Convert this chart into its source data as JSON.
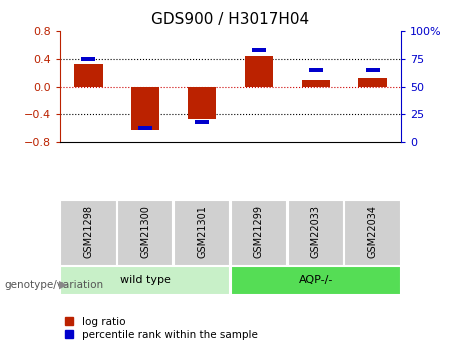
{
  "title": "GDS900 / H3017H04",
  "samples": [
    "GSM21298",
    "GSM21300",
    "GSM21301",
    "GSM21299",
    "GSM22033",
    "GSM22034"
  ],
  "log_ratios": [
    0.32,
    -0.62,
    -0.46,
    0.44,
    0.1,
    0.13
  ],
  "percentile_ranks": [
    75,
    13,
    18,
    83,
    65,
    65
  ],
  "groups": [
    {
      "name": "wild type",
      "indices": [
        0,
        1,
        2
      ],
      "color": "#c8f0c8"
    },
    {
      "name": "AQP-/-",
      "indices": [
        3,
        4,
        5
      ],
      "color": "#55dd55"
    }
  ],
  "ylim_left": [
    -0.8,
    0.8
  ],
  "ylim_right": [
    0,
    100
  ],
  "yticks_left": [
    -0.8,
    -0.4,
    0.0,
    0.4,
    0.8
  ],
  "yticks_right": [
    0,
    25,
    50,
    75,
    100
  ],
  "bar_color_red": "#bb2200",
  "bar_color_blue": "#0000cc",
  "zero_line_color": "#cc0000",
  "background_plot": "#ffffff",
  "legend_text_red": "log ratio",
  "legend_text_blue": "percentile rank within the sample",
  "genotype_label": "genotype/variation",
  "bar_width": 0.5,
  "blue_bar_width": 0.25,
  "blue_bar_height": 0.06,
  "sample_box_color": "#d0d0d0",
  "figure_bg": "#ffffff"
}
